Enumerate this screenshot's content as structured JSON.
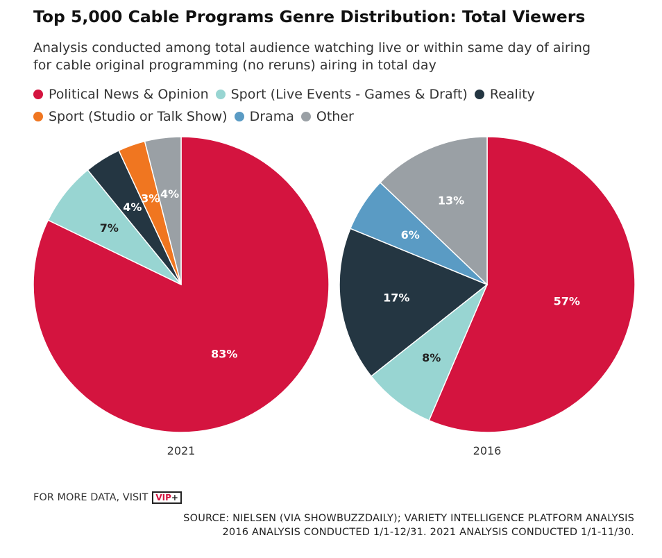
{
  "title": "Top 5,000 Cable Programs Genre Distribution: Total Viewers",
  "subtitle_line1": "Analysis conducted among total audience watching live or within same day of airing",
  "subtitle_line2": "for cable original programming (no reruns) airing in total day",
  "legend": [
    {
      "label": "Political News & Opinion",
      "color": "#d4143f"
    },
    {
      "label": "Sport (Live Events - Games & Draft)",
      "color": "#98d5d2"
    },
    {
      "label": "Reality",
      "color": "#243642"
    },
    {
      "label": "Sport (Studio or Talk Show)",
      "color": "#f07620"
    },
    {
      "label": "Drama",
      "color": "#5a9bc4"
    },
    {
      "label": "Other",
      "color": "#9aa0a5"
    }
  ],
  "chart_data": [
    {
      "type": "pie",
      "label": "2021",
      "slices": [
        {
          "category": "Political News & Opinion",
          "value": 83,
          "label": "83%"
        },
        {
          "category": "Sport (Live Events - Games & Draft)",
          "value": 7,
          "label": "7%"
        },
        {
          "category": "Reality",
          "value": 4,
          "label": "4%"
        },
        {
          "category": "Sport (Studio or Talk Show)",
          "value": 3,
          "label": "3%"
        },
        {
          "category": "Other",
          "value": 4,
          "label": "4%"
        }
      ]
    },
    {
      "type": "pie",
      "label": "2016",
      "slices": [
        {
          "category": "Political News & Opinion",
          "value": 57,
          "label": "57%"
        },
        {
          "category": "Sport (Live Events - Games & Draft)",
          "value": 8,
          "label": "8%"
        },
        {
          "category": "Reality",
          "value": 17,
          "label": "17%"
        },
        {
          "category": "Drama",
          "value": 6,
          "label": "6%"
        },
        {
          "category": "Other",
          "value": 13,
          "label": "13%"
        }
      ]
    }
  ],
  "footer": {
    "visit_text": "FOR MORE DATA, VISIT",
    "logo_text": "VIP+",
    "source_line1": "SOURCE: NIELSEN (VIA SHOWBUZZDAILY); VARIETY INTELLIGENCE PLATFORM ANALYSIS",
    "source_line2": "2016 ANALYSIS CONDUCTED 1/1-12/31. 2021 ANALYSIS CONDUCTED 1/1-11/30."
  }
}
